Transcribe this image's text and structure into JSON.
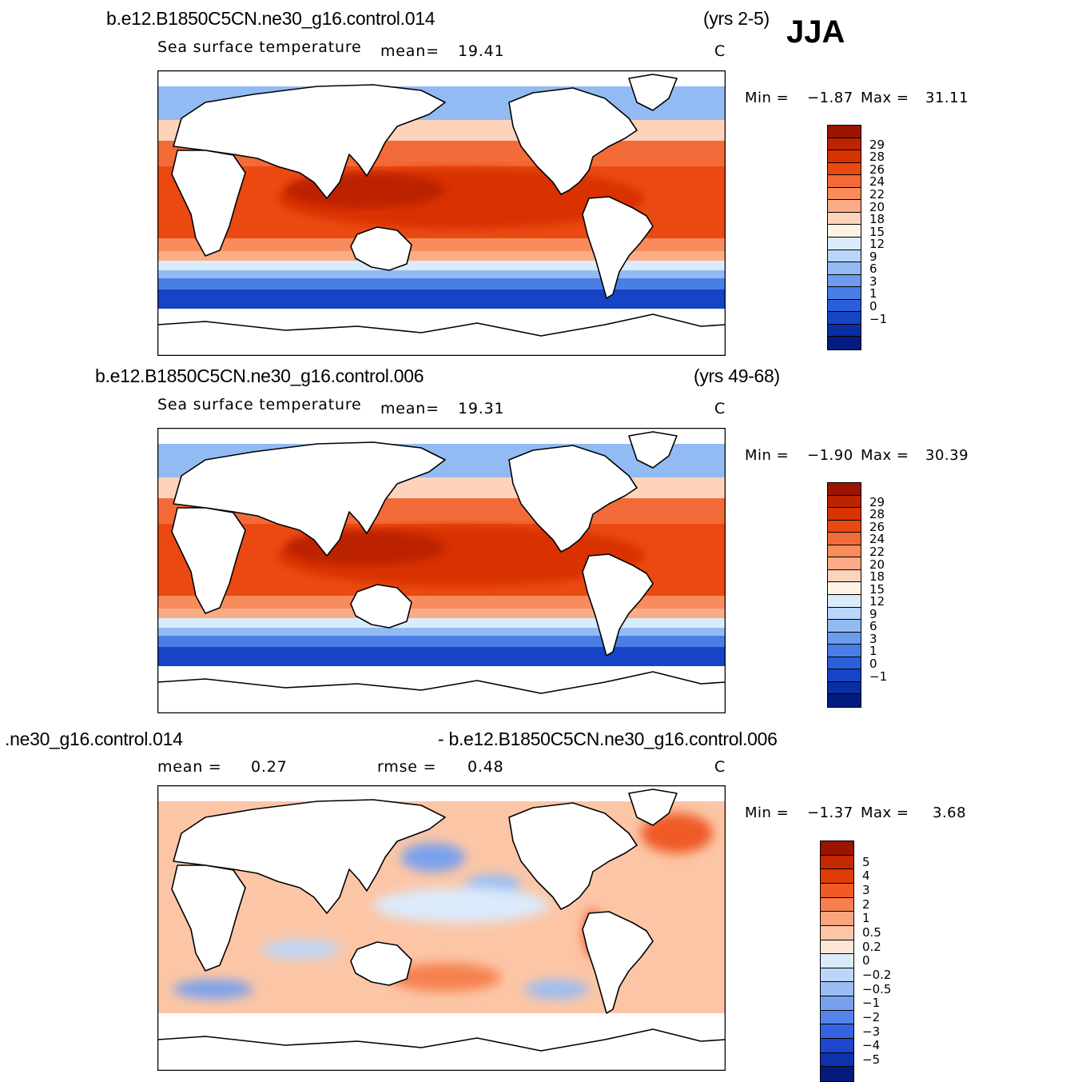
{
  "season": "JJA",
  "panels": [
    {
      "case": "b.e12.B1850C5CN.ne30_g16.control.014",
      "years": "(yrs 2-5)",
      "variable": "Sea surface temperature",
      "stat1_label": "mean=",
      "stat1_value": "19.41",
      "stat2_label": "",
      "stat2_value": "",
      "units": "C",
      "min_label": "Min =",
      "min_value": "−1.87",
      "max_label": "Max =",
      "max_value": "31.11",
      "colorbar": {
        "labels": [
          "29",
          "28",
          "26",
          "24",
          "22",
          "20",
          "18",
          "15",
          "12",
          "9",
          "6",
          "3",
          "1",
          "0",
          "−1"
        ],
        "colors": [
          "#9b1400",
          "#bc2300",
          "#d93300",
          "#ea4a12",
          "#f36b38",
          "#f88c5d",
          "#fbac87",
          "#fdd3bb",
          "#fff3e6",
          "#d9ecfb",
          "#b9d6f8",
          "#93bbf3",
          "#6d9bec",
          "#4a7ee6",
          "#2a5fdc",
          "#1544c6",
          "#0a2fa3",
          "#031b7f"
        ]
      }
    },
    {
      "case": "b.e12.B1850C5CN.ne30_g16.control.006",
      "years": "(yrs 49-68)",
      "variable": "Sea surface temperature",
      "stat1_label": "mean=",
      "stat1_value": "19.31",
      "stat2_label": "",
      "stat2_value": "",
      "units": "C",
      "min_label": "Min =",
      "min_value": "−1.90",
      "max_label": "Max =",
      "max_value": "30.39",
      "colorbar": {
        "labels": [
          "29",
          "28",
          "26",
          "24",
          "22",
          "20",
          "18",
          "15",
          "12",
          "9",
          "6",
          "3",
          "1",
          "0",
          "−1"
        ],
        "colors": [
          "#9b1400",
          "#bc2300",
          "#d93300",
          "#ea4a12",
          "#f36b38",
          "#f88c5d",
          "#fbac87",
          "#fdd3bb",
          "#fff3e6",
          "#d9ecfb",
          "#b9d6f8",
          "#93bbf3",
          "#6d9bec",
          "#4a7ee6",
          "#2a5fdc",
          "#1544c6",
          "#0a2fa3",
          "#031b7f"
        ]
      }
    },
    {
      "case": ".ne30_g16.control.014",
      "years": "- b.e12.B1850C5CN.ne30_g16.control.006",
      "variable": "",
      "stat1_label": "mean =",
      "stat1_value": "0.27",
      "stat2_label": "rmse =",
      "stat2_value": "0.48",
      "units": "C",
      "min_label": "Min =",
      "min_value": "−1.37",
      "max_label": "Max =",
      "max_value": "3.68",
      "colorbar": {
        "labels": [
          "5",
          "4",
          "3",
          "2",
          "1",
          "0.5",
          "0.2",
          "0",
          "−0.2",
          "−0.5",
          "−1",
          "−2",
          "−3",
          "−4",
          "−5"
        ],
        "colors": [
          "#9b1400",
          "#c42800",
          "#df3c08",
          "#ef5a25",
          "#f6814f",
          "#f9a47c",
          "#fcc6a6",
          "#fee6d6",
          "#dbeafa",
          "#bdd6f7",
          "#9bbdf3",
          "#7aa1ee",
          "#5683e8",
          "#3563df",
          "#1d46cc",
          "#0e31ad",
          "#031b7f"
        ]
      }
    }
  ]
}
